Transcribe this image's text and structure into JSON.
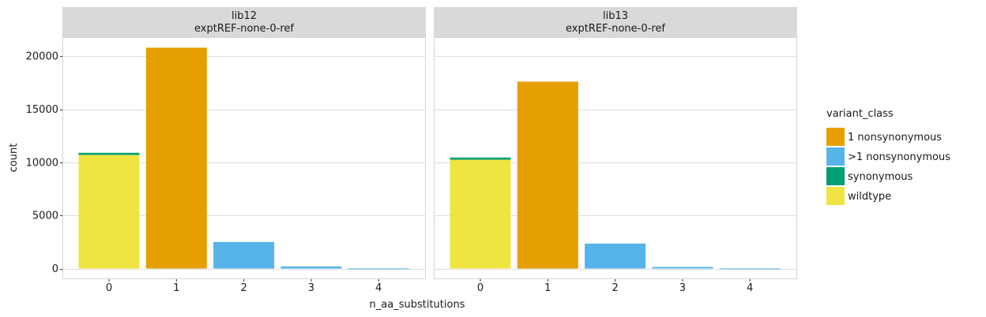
{
  "chart_data": {
    "type": "bar",
    "stacked": true,
    "xlabel": "n_aa_substitutions",
    "ylabel": "count",
    "categories": [
      "0",
      "1",
      "2",
      "3",
      "4"
    ],
    "yticks": [
      0,
      5000,
      10000,
      15000,
      20000
    ],
    "ylim": [
      -1000,
      21800
    ],
    "grid": true,
    "legend": {
      "title": "variant_class",
      "position": "right",
      "entries": [
        {
          "label": "1 nonsynonymous",
          "color": "#E69F00"
        },
        {
          "label": ">1 nonsynonymous",
          "color": "#56B4E9"
        },
        {
          "label": "synonymous",
          "color": "#009E73"
        },
        {
          "label": "wildtype",
          "color": "#F0E442"
        }
      ]
    },
    "facets": [
      {
        "strip_line1": "lib12",
        "strip_line2": "exptREF-none-0-ref",
        "series": [
          {
            "name": "1 nonsynonymous",
            "values": [
              0,
              20800,
              0,
              0,
              0
            ]
          },
          {
            "name": ">1 nonsynonymous",
            "values": [
              0,
              0,
              2500,
              200,
              10
            ]
          },
          {
            "name": "synonymous",
            "values": [
              200,
              0,
              0,
              0,
              0
            ]
          },
          {
            "name": "wildtype",
            "values": [
              10700,
              0,
              0,
              0,
              0
            ]
          }
        ]
      },
      {
        "strip_line1": "lib13",
        "strip_line2": "exptREF-none-0-ref",
        "series": [
          {
            "name": "1 nonsynonymous",
            "values": [
              0,
              17600,
              0,
              0,
              0
            ]
          },
          {
            "name": ">1 nonsynonymous",
            "values": [
              0,
              0,
              2350,
              150,
              10
            ]
          },
          {
            "name": "synonymous",
            "values": [
              200,
              0,
              0,
              0,
              0
            ]
          },
          {
            "name": "wildtype",
            "values": [
              10250,
              0,
              0,
              0,
              0
            ]
          }
        ]
      }
    ]
  }
}
